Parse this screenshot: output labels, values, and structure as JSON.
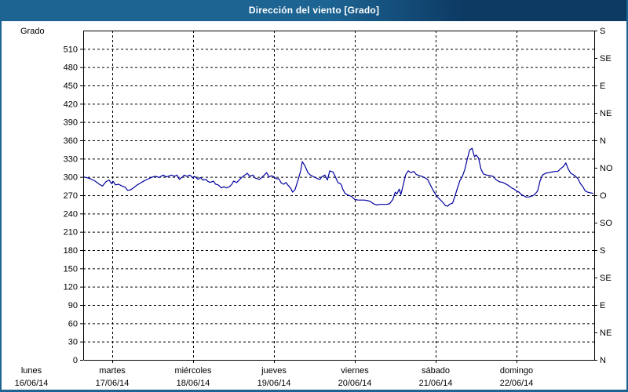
{
  "title": "Dirección del viento [Grado]",
  "colors": {
    "titlebar_left": "#1d6493",
    "titlebar_right": "#0c3a63",
    "window_border": "#1d6493",
    "line": "#0000a0",
    "axis": "#000000",
    "background": "#ffffff"
  },
  "chart_data": {
    "type": "line",
    "title": "Dirección del viento [Grado]",
    "ylabel": "Grado",
    "grid": true,
    "y_axis": {
      "min": 0,
      "max": 540,
      "tick_step": 30,
      "label_max": 510
    },
    "right_axis": {
      "tick_step_deg": 45,
      "labels_bottom_to_top": [
        "N",
        "NE",
        "E",
        "SE",
        "S",
        "SO",
        "O",
        "NO",
        "N",
        "NE",
        "E",
        "SE",
        "S"
      ]
    },
    "x_axis": {
      "unit": "days",
      "days": [
        {
          "name": "lunes",
          "date": "16/06/14"
        },
        {
          "name": "martes",
          "date": "17/06/14"
        },
        {
          "name": "miércoles",
          "date": "18/06/14"
        },
        {
          "name": "jueves",
          "date": "19/06/14"
        },
        {
          "name": "viernes",
          "date": "20/06/14"
        },
        {
          "name": "sábado",
          "date": "21/06/14"
        },
        {
          "name": "domingo",
          "date": "22/06/14"
        }
      ]
    },
    "series": [
      {
        "name": "Dirección del viento",
        "color": "#0000a0",
        "points": [
          [
            0.65,
            300
          ],
          [
            0.68,
            299
          ],
          [
            0.73,
            297
          ],
          [
            0.79,
            293
          ],
          [
            0.84,
            288
          ],
          [
            0.88,
            285
          ],
          [
            0.92,
            292
          ],
          [
            0.96,
            295
          ],
          [
            0.99,
            289
          ],
          [
            1.01,
            293
          ],
          [
            1.04,
            287
          ],
          [
            1.08,
            288
          ],
          [
            1.12,
            285
          ],
          [
            1.16,
            283
          ],
          [
            1.19,
            278
          ],
          [
            1.23,
            279
          ],
          [
            1.27,
            283
          ],
          [
            1.31,
            287
          ],
          [
            1.35,
            290
          ],
          [
            1.4,
            294
          ],
          [
            1.45,
            297
          ],
          [
            1.5,
            300
          ],
          [
            1.54,
            301
          ],
          [
            1.58,
            299
          ],
          [
            1.63,
            303
          ],
          [
            1.67,
            300
          ],
          [
            1.73,
            303
          ],
          [
            1.77,
            301
          ],
          [
            1.8,
            303
          ],
          [
            1.83,
            296
          ],
          [
            1.86,
            299
          ],
          [
            1.89,
            303
          ],
          [
            1.92,
            301
          ],
          [
            1.96,
            303
          ],
          [
            2.0,
            298
          ],
          [
            2.02,
            301
          ],
          [
            2.06,
            296
          ],
          [
            2.09,
            299
          ],
          [
            2.12,
            295
          ],
          [
            2.16,
            296
          ],
          [
            2.18,
            293
          ],
          [
            2.21,
            291
          ],
          [
            2.25,
            293
          ],
          [
            2.28,
            288
          ],
          [
            2.31,
            287
          ],
          [
            2.35,
            282
          ],
          [
            2.38,
            284
          ],
          [
            2.41,
            282
          ],
          [
            2.45,
            284
          ],
          [
            2.48,
            288
          ],
          [
            2.5,
            293
          ],
          [
            2.54,
            291
          ],
          [
            2.57,
            295
          ],
          [
            2.6,
            299
          ],
          [
            2.64,
            303
          ],
          [
            2.67,
            306
          ],
          [
            2.7,
            301
          ],
          [
            2.74,
            303
          ],
          [
            2.77,
            298
          ],
          [
            2.82,
            296
          ],
          [
            2.84,
            298
          ],
          [
            2.88,
            303
          ],
          [
            2.91,
            307
          ],
          [
            2.94,
            300
          ],
          [
            2.97,
            302
          ],
          [
            3.0,
            300
          ],
          [
            3.03,
            297
          ],
          [
            3.06,
            297
          ],
          [
            3.09,
            290
          ],
          [
            3.12,
            288
          ],
          [
            3.15,
            291
          ],
          [
            3.17,
            287
          ],
          [
            3.21,
            281
          ],
          [
            3.23,
            275
          ],
          [
            3.26,
            279
          ],
          [
            3.3,
            296
          ],
          [
            3.33,
            310
          ],
          [
            3.35,
            325
          ],
          [
            3.38,
            319
          ],
          [
            3.42,
            307
          ],
          [
            3.45,
            303
          ],
          [
            3.48,
            301
          ],
          [
            3.51,
            299
          ],
          [
            3.54,
            297
          ],
          [
            3.57,
            296
          ],
          [
            3.59,
            300
          ],
          [
            3.63,
            303
          ],
          [
            3.66,
            295
          ],
          [
            3.69,
            310
          ],
          [
            3.73,
            308
          ],
          [
            3.76,
            300
          ],
          [
            3.79,
            291
          ],
          [
            3.83,
            288
          ],
          [
            3.85,
            280
          ],
          [
            3.88,
            273
          ],
          [
            3.92,
            270
          ],
          [
            3.96,
            268
          ],
          [
            4.0,
            263
          ],
          [
            4.04,
            262
          ],
          [
            4.08,
            262
          ],
          [
            4.12,
            262
          ],
          [
            4.16,
            261
          ],
          [
            4.19,
            260
          ],
          [
            4.23,
            256
          ],
          [
            4.27,
            254
          ],
          [
            4.31,
            255
          ],
          [
            4.35,
            255
          ],
          [
            4.39,
            255
          ],
          [
            4.43,
            256
          ],
          [
            4.47,
            263
          ],
          [
            4.5,
            275
          ],
          [
            4.52,
            272
          ],
          [
            4.55,
            280
          ],
          [
            4.57,
            271
          ],
          [
            4.6,
            288
          ],
          [
            4.63,
            304
          ],
          [
            4.66,
            310
          ],
          [
            4.69,
            307
          ],
          [
            4.73,
            309
          ],
          [
            4.76,
            304
          ],
          [
            4.8,
            302
          ],
          [
            4.83,
            301
          ],
          [
            4.86,
            299
          ],
          [
            4.9,
            296
          ],
          [
            4.93,
            288
          ],
          [
            4.96,
            280
          ],
          [
            5.0,
            271
          ],
          [
            5.03,
            266
          ],
          [
            5.06,
            262
          ],
          [
            5.09,
            258
          ],
          [
            5.12,
            253
          ],
          [
            5.15,
            252
          ],
          [
            5.17,
            255
          ],
          [
            5.21,
            257
          ],
          [
            5.24,
            269
          ],
          [
            5.27,
            282
          ],
          [
            5.3,
            294
          ],
          [
            5.33,
            301
          ],
          [
            5.36,
            312
          ],
          [
            5.39,
            329
          ],
          [
            5.42,
            344
          ],
          [
            5.45,
            347
          ],
          [
            5.48,
            333
          ],
          [
            5.5,
            336
          ],
          [
            5.53,
            331
          ],
          [
            5.56,
            313
          ],
          [
            5.59,
            305
          ],
          [
            5.63,
            303
          ],
          [
            5.67,
            302
          ],
          [
            5.71,
            301
          ],
          [
            5.75,
            295
          ],
          [
            5.79,
            292
          ],
          [
            5.83,
            291
          ],
          [
            5.86,
            289
          ],
          [
            5.9,
            286
          ],
          [
            5.94,
            282
          ],
          [
            5.97,
            280
          ],
          [
            6.0,
            277
          ],
          [
            6.03,
            275
          ],
          [
            6.06,
            271
          ],
          [
            6.09,
            269
          ],
          [
            6.12,
            267
          ],
          [
            6.15,
            267
          ],
          [
            6.17,
            268
          ],
          [
            6.2,
            269
          ],
          [
            6.23,
            272
          ],
          [
            6.26,
            277
          ],
          [
            6.29,
            293
          ],
          [
            6.32,
            303
          ],
          [
            6.36,
            306
          ],
          [
            6.4,
            307
          ],
          [
            6.44,
            308
          ],
          [
            6.48,
            309
          ],
          [
            6.51,
            309
          ],
          [
            6.55,
            314
          ],
          [
            6.58,
            317
          ],
          [
            6.61,
            323
          ],
          [
            6.64,
            313
          ],
          [
            6.67,
            306
          ],
          [
            6.7,
            304
          ],
          [
            6.73,
            301
          ],
          [
            6.76,
            297
          ],
          [
            6.79,
            289
          ],
          [
            6.82,
            284
          ],
          [
            6.85,
            277
          ],
          [
            6.88,
            275
          ],
          [
            6.91,
            274
          ],
          [
            6.95,
            273
          ]
        ]
      }
    ]
  }
}
